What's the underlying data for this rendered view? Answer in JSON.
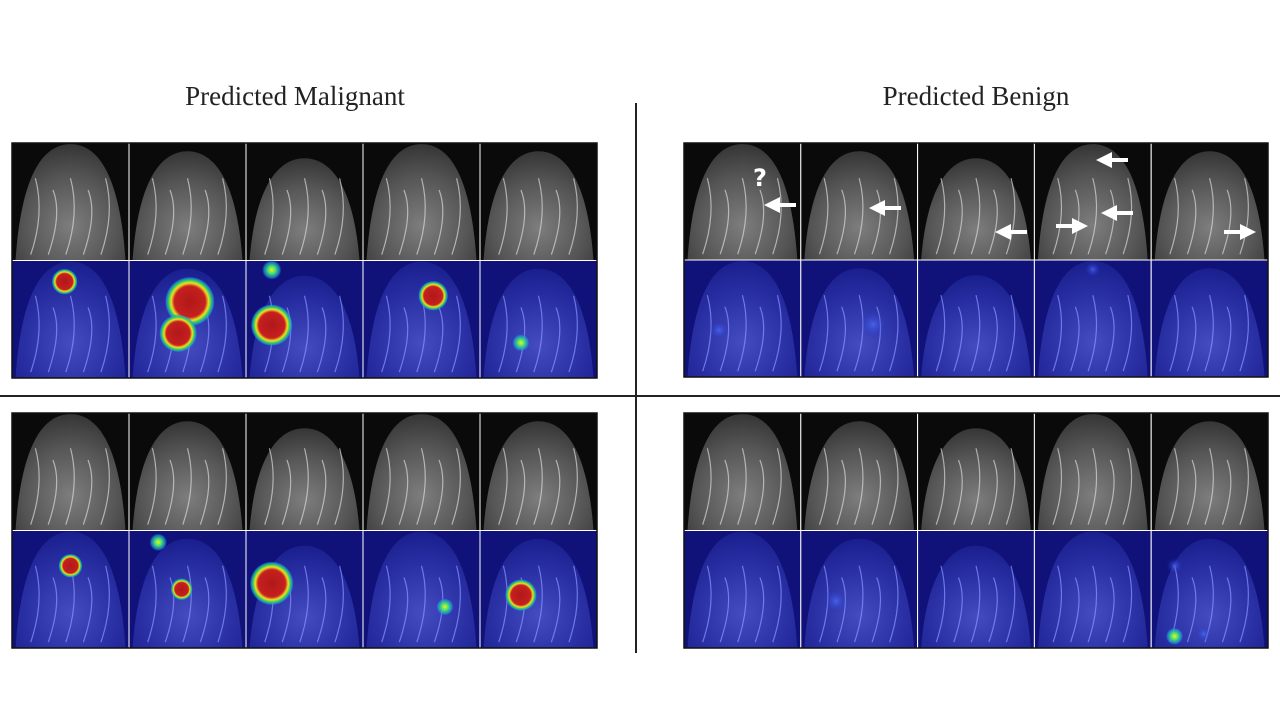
{
  "header": {
    "left": "Predicted Malignant",
    "right": "Predicted Benign"
  },
  "annotations": [
    "?"
  ]
}
